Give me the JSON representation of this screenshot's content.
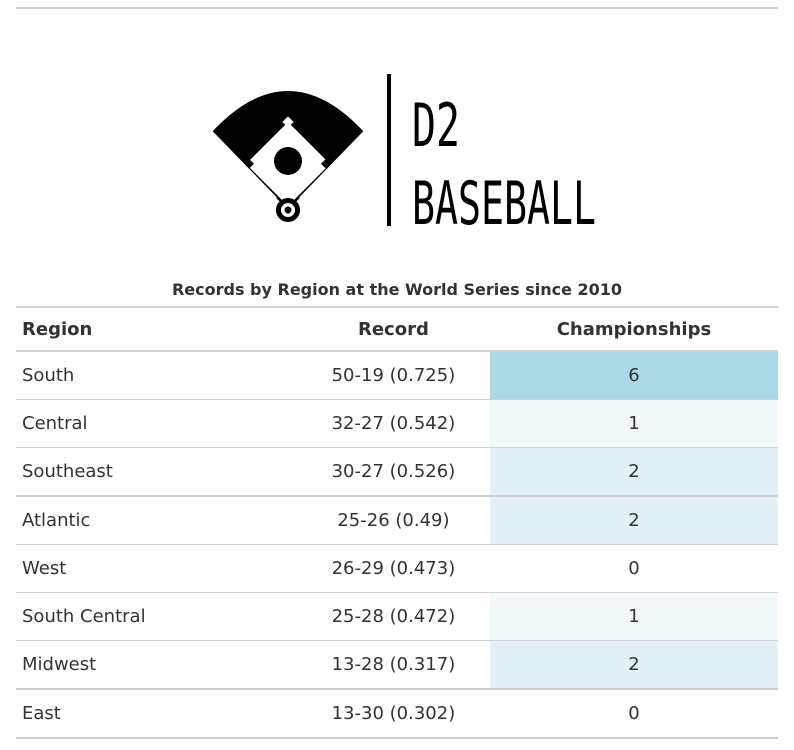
{
  "logo": {
    "line1": "D2",
    "line2": "BASEBALL"
  },
  "table": {
    "title": "Records by Region at the World Series since 2010",
    "headers": {
      "region": "Region",
      "record": "Record",
      "championships": "Championships"
    },
    "rows": [
      {
        "region": "South",
        "record": "50-19 (0.725)",
        "championships": "6",
        "shade": "#add8e6"
      },
      {
        "region": "Central",
        "record": "32-27 (0.542)",
        "championships": "1",
        "shade": "#f2f7fa"
      },
      {
        "region": "Southeast",
        "record": "30-27 (0.526)",
        "championships": "2",
        "shade": "#e3f0f5"
      },
      {
        "region": "Atlantic",
        "record": "25-26 (0.49)",
        "championships": "2",
        "shade": "#e3f0f5"
      },
      {
        "region": "West",
        "record": "26-29 (0.473)",
        "championships": "0",
        "shade": "#ffffff"
      },
      {
        "region": "South Central",
        "record": "25-28 (0.472)",
        "championships": "1",
        "shade": "#f2f7fa"
      },
      {
        "region": "Midwest",
        "record": "13-28 (0.317)",
        "championships": "2",
        "shade": "#e3f0f5"
      },
      {
        "region": "East",
        "record": "13-30 (0.302)",
        "championships": "0",
        "shade": "#ffffff"
      }
    ]
  }
}
